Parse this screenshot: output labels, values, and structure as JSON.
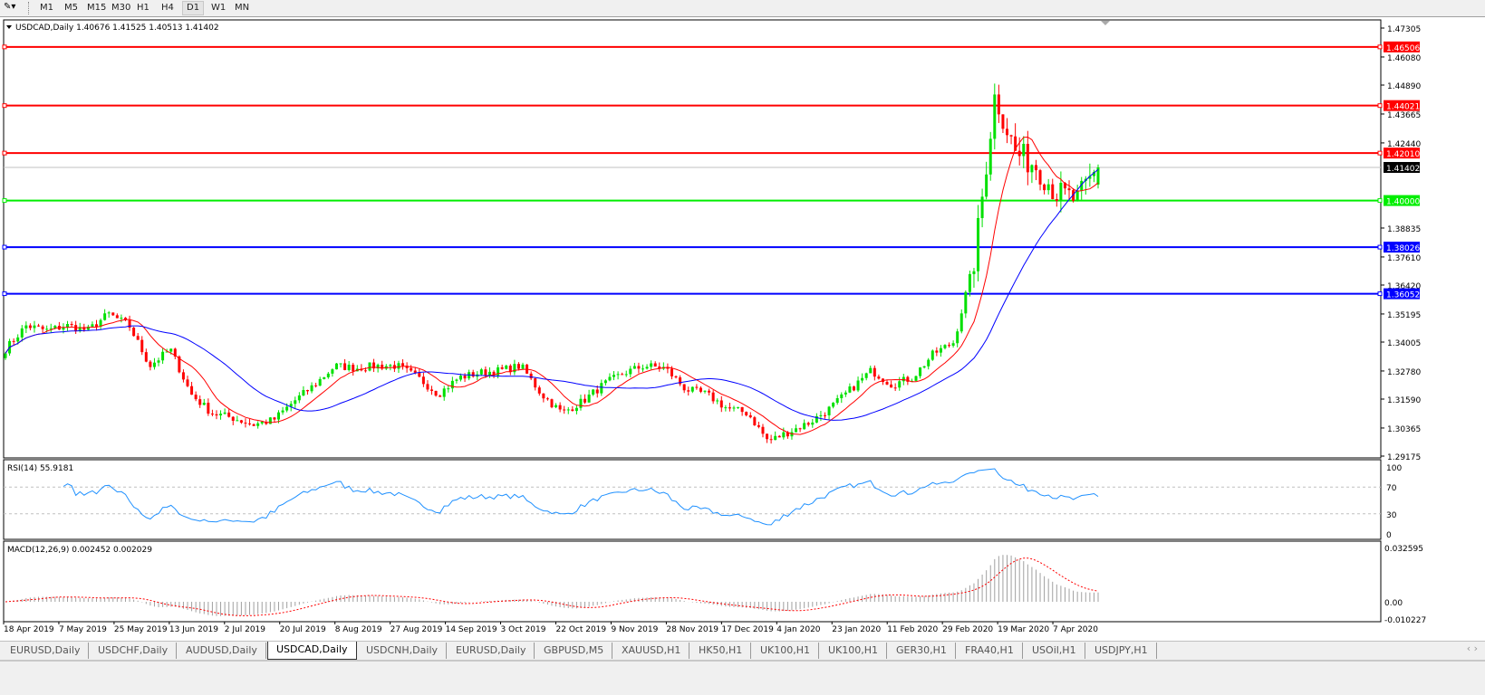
{
  "toolbar": {
    "timeframes": [
      "M1",
      "M5",
      "M15",
      "M30",
      "H1",
      "H4",
      "D1",
      "W1",
      "MN"
    ],
    "active": "D1"
  },
  "chart": {
    "header": "USDCAD,Daily  1.40676 1.41525 1.40513 1.41402",
    "symbol": "USDCAD",
    "period": "Daily",
    "open": "1.40676",
    "high": "1.41525",
    "low": "1.40513",
    "close": "1.41402",
    "current_price_label": "1.41402",
    "price_ticks": [
      "1.47305",
      "1.46080",
      "1.44890",
      "1.43665",
      "1.42440",
      "1.38835",
      "1.37610",
      "1.36420",
      "1.35195",
      "1.34005",
      "1.32780",
      "1.31590",
      "1.30365",
      "1.29175"
    ],
    "hlines": [
      {
        "price": "1.46506",
        "color": "#ff0000"
      },
      {
        "price": "1.44021",
        "color": "#ff0000"
      },
      {
        "price": "1.42010",
        "color": "#ff0000"
      },
      {
        "price": "1.40000",
        "color": "#00ee00"
      },
      {
        "price": "1.38026",
        "color": "#0000ff"
      },
      {
        "price": "1.36052",
        "color": "#0000ff"
      }
    ],
    "colors": {
      "bull": "#00e000",
      "bear": "#ff0000",
      "ma_fast": "#ff0000",
      "ma_slow": "#0000ff",
      "rsi": "#1e90ff",
      "macd_signal": "#ff0000",
      "macd_hist": "#a0a0a0"
    },
    "date_labels": [
      "18 Apr 2019",
      "7 May 2019",
      "25 May 2019",
      "13 Jun 2019",
      "2 Jul 2019",
      "20 Jul 2019",
      "8 Aug 2019",
      "27 Aug 2019",
      "14 Sep 2019",
      "3 Oct 2019",
      "22 Oct 2019",
      "9 Nov 2019",
      "28 Nov 2019",
      "17 Dec 2019",
      "4 Jan 2020",
      "23 Jan 2020",
      "11 Feb 2020",
      "29 Feb 2020",
      "19 Mar 2020",
      "7 Apr 2020"
    ]
  },
  "rsi": {
    "label": "RSI(14) 55.9181",
    "levels": [
      "100",
      "70",
      "30",
      "0"
    ]
  },
  "macd": {
    "label": "MACD(12,26,9) 0.002452 0.002029",
    "levels": [
      "0.032595",
      "0.00",
      "-0.010227"
    ]
  },
  "chart_data": {
    "type": "candlestick",
    "symbol": "USDCAD",
    "timeframe": "Daily",
    "approx_weekly_closes": [
      1.337,
      1.347,
      1.345,
      1.347,
      1.345,
      1.352,
      1.347,
      1.33,
      1.337,
      1.318,
      1.31,
      1.308,
      1.305,
      1.307,
      1.315,
      1.322,
      1.33,
      1.329,
      1.33,
      1.33,
      1.325,
      1.318,
      1.325,
      1.327,
      1.328,
      1.33,
      1.318,
      1.31,
      1.315,
      1.322,
      1.327,
      1.33,
      1.329,
      1.32,
      1.318,
      1.312,
      1.31,
      1.298,
      1.302,
      1.306,
      1.312,
      1.32,
      1.328,
      1.322,
      1.325,
      1.335,
      1.34,
      1.375,
      1.445,
      1.42,
      1.415,
      1.403,
      1.4,
      1.41402
    ],
    "ylim": [
      1.29175,
      1.47305
    ],
    "last_bar": {
      "open": 1.40676,
      "high": 1.41525,
      "low": 1.40513,
      "close": 1.41402
    }
  },
  "tabs": [
    "EURUSD,Daily",
    "USDCHF,Daily",
    "AUDUSD,Daily",
    "USDCAD,Daily",
    "USDCNH,Daily",
    "EURUSD,Daily",
    "GBPUSD,M5",
    "XAUUSD,H1",
    "HK50,H1",
    "UK100,H1",
    "UK100,H1",
    "GER30,H1",
    "FRA40,H1",
    "USOil,H1",
    "USDJPY,H1"
  ],
  "active_tab": "USDCAD,Daily"
}
